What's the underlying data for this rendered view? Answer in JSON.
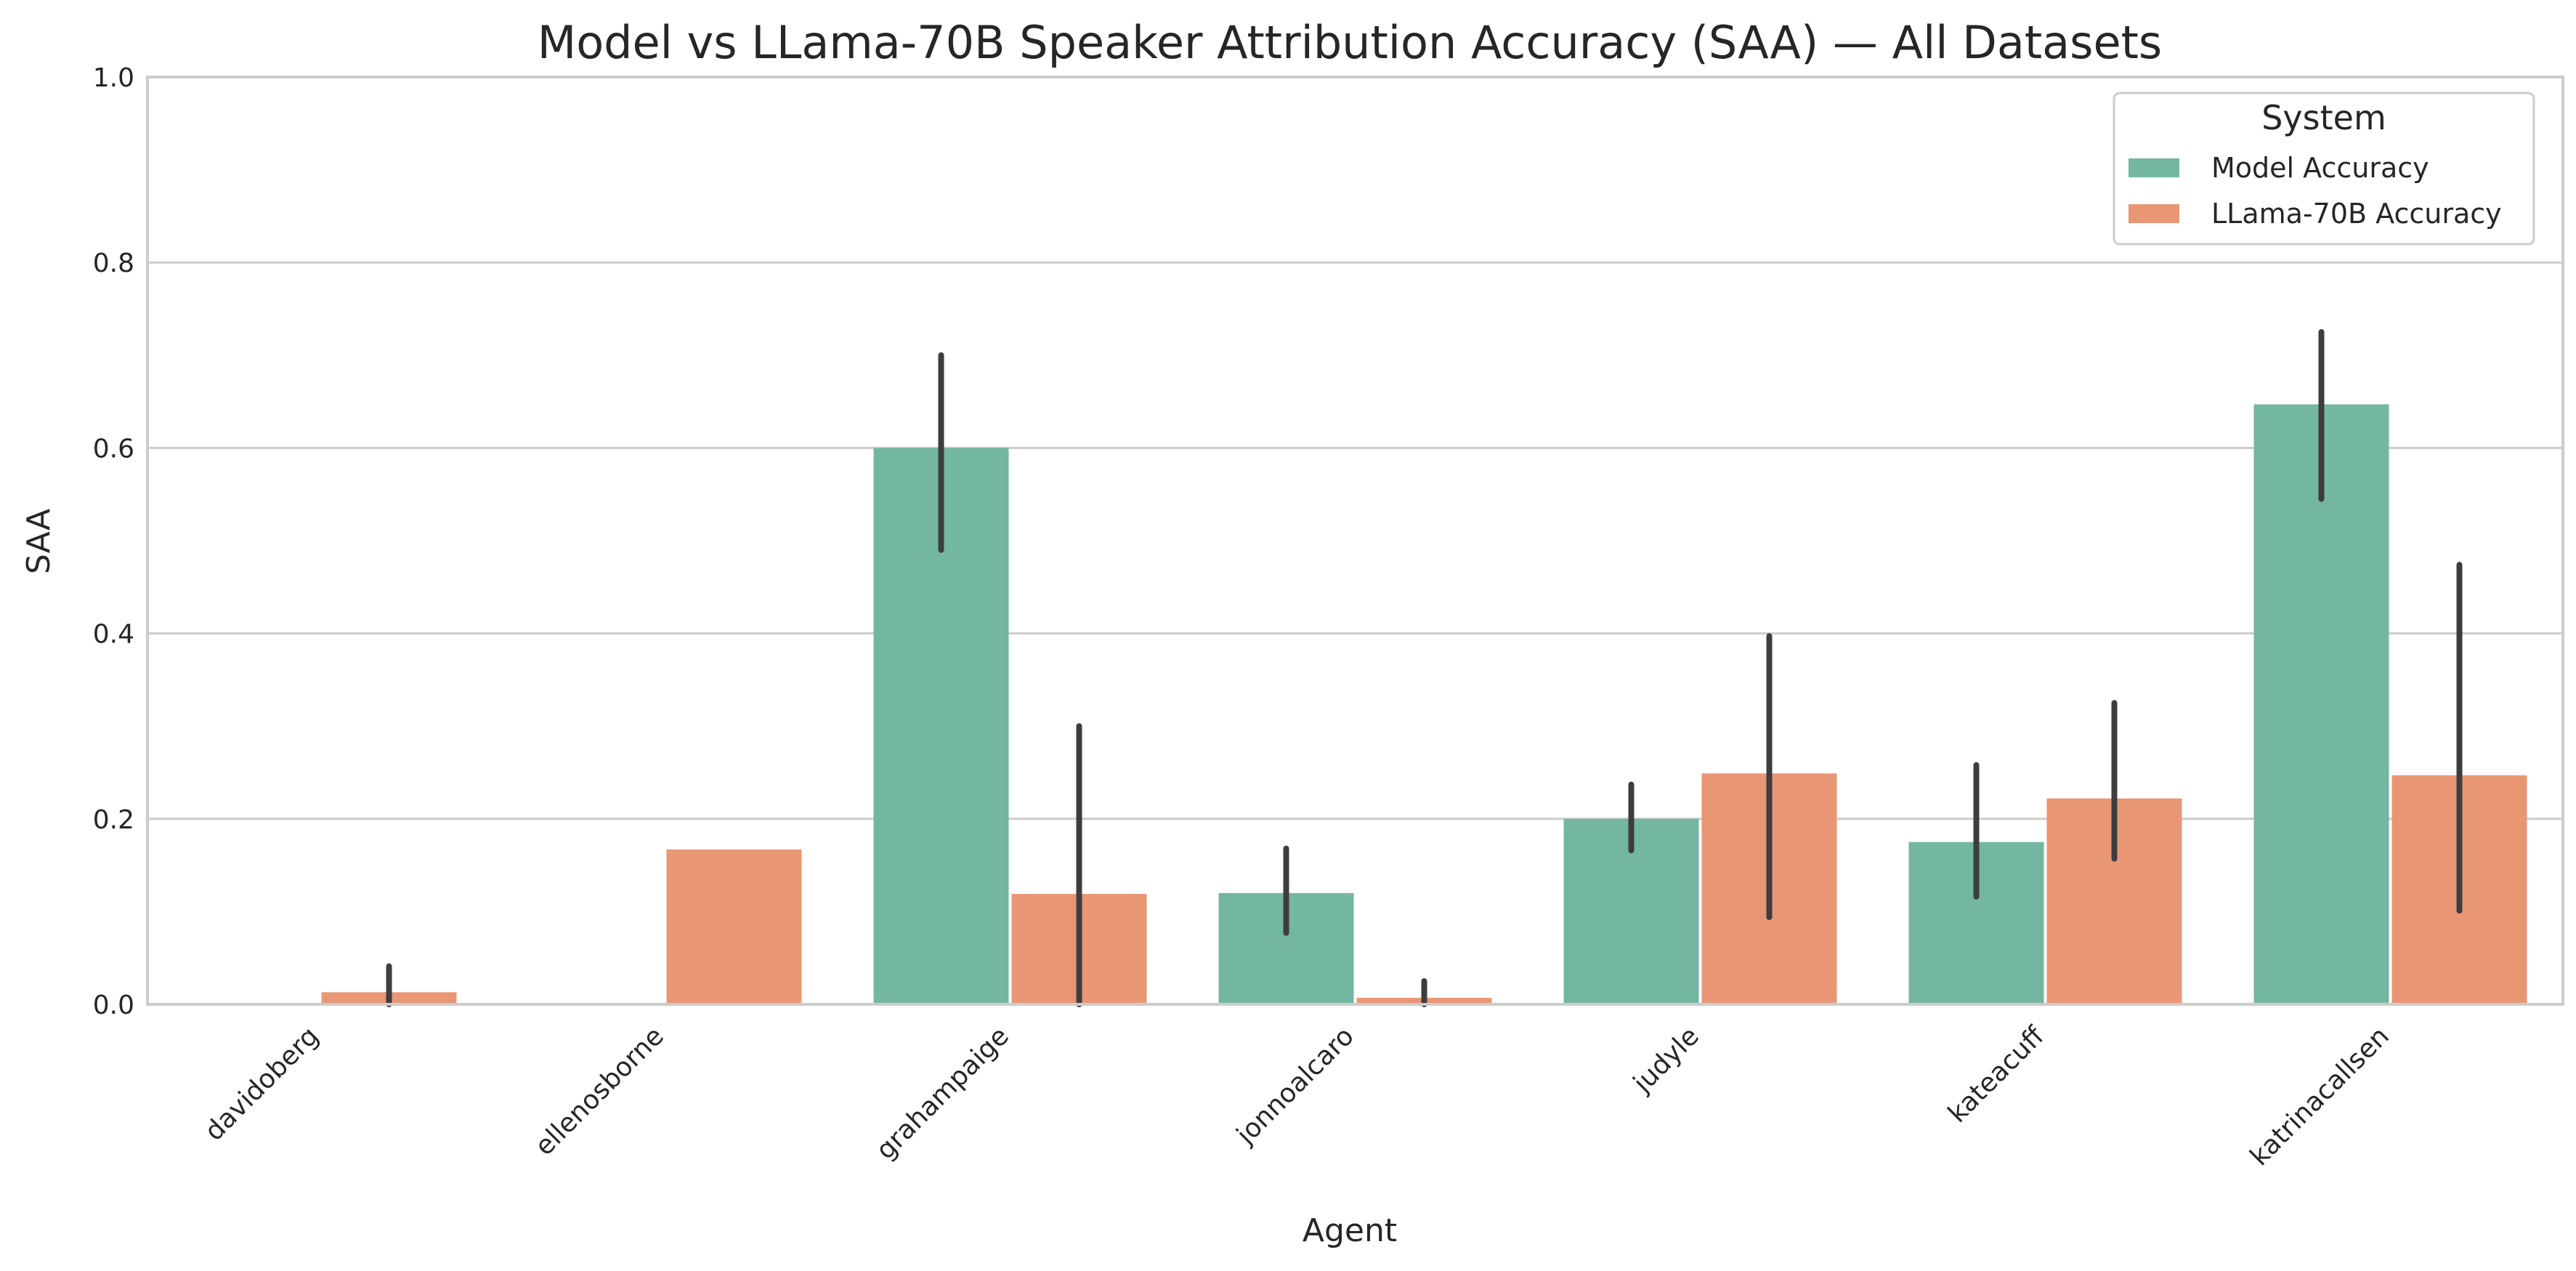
{
  "chart_data": {
    "type": "bar",
    "title": "Model vs LLama-70B Speaker Attribution Accuracy (SAA) — All Datasets",
    "xlabel": "Agent",
    "ylabel": "SAA",
    "ylim": [
      0,
      1.0
    ],
    "yticks": [
      "0.0",
      "0.2",
      "0.4",
      "0.6",
      "0.8",
      "1.0"
    ],
    "grid": "horizontal",
    "categories": [
      "davidoberg",
      "ellenosborne",
      "grahampaige",
      "jonnoalcaro",
      "judyle",
      "kateacuff",
      "katrinacallsen"
    ],
    "legend": {
      "title": "System",
      "placement": "top-right"
    },
    "series": [
      {
        "name": "Model Accuracy",
        "color": "#73b7a0",
        "values": [
          0.0,
          0.0,
          0.6,
          0.12,
          0.2,
          0.175,
          0.647
        ],
        "error_low": [
          null,
          null,
          0.49,
          0.077,
          0.166,
          0.116,
          0.545
        ],
        "error_high": [
          null,
          null,
          0.7,
          0.168,
          0.237,
          0.258,
          0.725
        ]
      },
      {
        "name": "LLama-70B Accuracy",
        "color": "#e99675",
        "values": [
          0.013,
          0.167,
          0.119,
          0.007,
          0.249,
          0.222,
          0.247
        ],
        "error_low": [
          0.0,
          null,
          0.0,
          0.0,
          0.094,
          0.157,
          0.101
        ],
        "error_high": [
          0.041,
          null,
          0.3,
          0.025,
          0.397,
          0.325,
          0.474
        ]
      }
    ],
    "error_bar_color": "#3d3d3d",
    "grid_color": "#cccccc",
    "axis_color": "#cccccc"
  }
}
